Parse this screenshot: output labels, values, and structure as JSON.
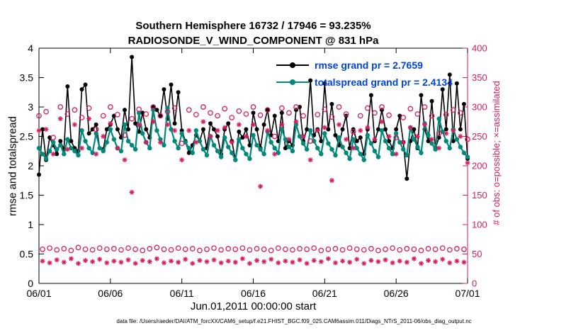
{
  "title": {
    "line1": "Southern Hemisphere 16732 / 17946 = 93.235%",
    "line2": "RADIOSONDE_V_WIND_COMPONENT @ 831 hPa"
  },
  "axes": {
    "xlabel": "Jun.01,2011 00:00:00 start",
    "ylabel_left": "rmse and totalspread",
    "ylabel_right": "# of obs: o=possible; ×=assimilated",
    "x_tick_labels": [
      "06/01",
      "06/06",
      "06/11",
      "06/16",
      "06/21",
      "06/26",
      "07/01"
    ],
    "y_left_tick_labels": [
      "0",
      "0.5",
      "1",
      "1.5",
      "2",
      "2.5",
      "3",
      "3.5",
      "4"
    ],
    "y_right_tick_labels": [
      "0",
      "50",
      "100",
      "150",
      "200",
      "250",
      "300",
      "350",
      "400"
    ]
  },
  "legend": [
    {
      "label": "rmse grand pr = 2.7659",
      "color": "#000000"
    },
    {
      "label": "totalspread grand pr = 2.4134",
      "color": "#00897b"
    }
  ],
  "colors": {
    "rmse": "#000000",
    "totalspread": "#00897b",
    "obs": "#d81b60",
    "legend_text": "#0044dd",
    "axis": "#000000"
  },
  "caption": "data file: /Users/raeder/DAI/ATM_forcXX/CAM6_setup/f.e21.FHIST_BGC.f09_025.CAM6assim.011/Diags_NTrS_2011-06/obs_diag_output.nc",
  "chart_data": {
    "type": "line",
    "x_range_days": [
      0,
      30
    ],
    "sample_interval_days": 0.25,
    "x_tick_days": [
      0,
      5,
      10,
      15,
      20,
      25,
      30
    ],
    "ylim_left": [
      0,
      4
    ],
    "y_left_tick_values": [
      0,
      0.5,
      1,
      1.5,
      2,
      2.5,
      3,
      3.5,
      4
    ],
    "ylim_right": [
      0,
      400
    ],
    "y_right_tick_values": [
      0,
      50,
      100,
      150,
      200,
      250,
      300,
      350,
      400
    ],
    "series": [
      {
        "name": "rmse",
        "grand_mean": 2.7659,
        "values": [
          1.85,
          2.62,
          2.1,
          2.48,
          2.35,
          2.2,
          2.42,
          2.28,
          3.35,
          2.42,
          2.3,
          2.25,
          3.3,
          3.38,
          2.55,
          2.62,
          2.7,
          2.3,
          2.28,
          2.62,
          2.7,
          2.85,
          2.62,
          2.48,
          2.95,
          2.62,
          3.85,
          2.72,
          2.58,
          2.9,
          2.62,
          2.48,
          3.0,
          2.95,
          2.85,
          3.3,
          2.8,
          3.38,
          2.72,
          3.25,
          2.6,
          2.42,
          2.22,
          2.35,
          2.52,
          2.42,
          2.62,
          2.3,
          2.72,
          2.62,
          2.5,
          2.2,
          2.62,
          2.72,
          2.42,
          2.1,
          2.58,
          2.48,
          2.62,
          2.35,
          2.9,
          2.62,
          2.3,
          2.7,
          2.95,
          2.52,
          2.85,
          2.42,
          2.9,
          2.3,
          2.42,
          2.35,
          2.95,
          3.0,
          2.42,
          2.62,
          3.45,
          2.52,
          2.62,
          2.42,
          3.4,
          2.62,
          3.05,
          2.52,
          2.35,
          2.62,
          2.85,
          2.3,
          2.62,
          2.42,
          2.48,
          2.2,
          2.62,
          3.2,
          2.42,
          2.62,
          2.95,
          2.62,
          2.42,
          2.3,
          2.62,
          2.85,
          2.4,
          1.78,
          2.42,
          2.62,
          2.3,
          3.2,
          2.62,
          2.42,
          3.1,
          2.3,
          2.48,
          3.3,
          2.62,
          3.55,
          2.42,
          3.4,
          2.62,
          3.05,
          2.12
        ]
      },
      {
        "name": "totalspread",
        "grand_mean": 2.4134,
        "values": [
          2.3,
          2.2,
          2.12,
          2.25,
          2.4,
          2.28,
          2.35,
          2.2,
          2.45,
          2.3,
          2.25,
          2.18,
          2.6,
          2.42,
          2.3,
          2.22,
          2.55,
          2.3,
          2.25,
          2.4,
          2.62,
          2.45,
          2.3,
          2.25,
          2.7,
          2.42,
          2.35,
          2.28,
          2.9,
          2.55,
          2.4,
          2.3,
          2.95,
          2.6,
          2.45,
          2.35,
          2.98,
          2.62,
          2.42,
          2.3,
          2.55,
          2.4,
          2.3,
          2.22,
          2.6,
          2.42,
          2.28,
          2.18,
          2.5,
          2.35,
          2.25,
          2.15,
          2.48,
          2.32,
          2.22,
          2.1,
          2.45,
          2.3,
          2.2,
          2.12,
          2.52,
          2.35,
          2.28,
          2.2,
          2.58,
          2.4,
          2.3,
          2.22,
          2.62,
          2.45,
          2.32,
          2.25,
          2.7,
          2.5,
          2.38,
          2.28,
          2.6,
          2.42,
          2.3,
          2.2,
          2.55,
          2.38,
          2.28,
          2.18,
          2.48,
          2.32,
          2.22,
          2.12,
          2.45,
          2.3,
          2.2,
          2.1,
          2.52,
          2.38,
          2.25,
          2.15,
          2.6,
          2.42,
          2.3,
          2.2,
          2.55,
          2.4,
          2.28,
          2.18,
          2.65,
          2.45,
          2.32,
          2.22,
          2.72,
          2.52,
          2.38,
          2.28,
          2.8,
          2.58,
          2.42,
          2.3,
          2.62,
          2.45,
          2.32,
          2.22,
          2.15
        ]
      }
    ],
    "obs_counts": {
      "possible": {
        "marker": "o",
        "values": [
          285,
          58,
          292,
          60,
          248,
          57,
          300,
          59,
          288,
          56,
          295,
          61,
          282,
          58,
          298,
          57,
          262,
          60,
          285,
          58,
          300,
          59,
          287,
          57,
          252,
          60,
          280,
          58,
          296,
          56,
          288,
          59,
          300,
          61,
          285,
          58,
          292,
          57,
          298,
          60,
          238,
          58,
          295,
          59,
          287,
          56,
          300,
          58,
          290,
          60,
          285,
          57,
          297,
          59,
          282,
          58,
          293,
          60,
          288,
          57,
          300,
          59,
          286,
          58,
          295,
          56,
          250,
          60,
          298,
          58,
          290,
          57,
          300,
          59,
          285,
          58,
          242,
          60,
          287,
          56,
          296,
          58,
          283,
          59,
          300,
          57,
          288,
          60,
          258,
          58,
          285,
          57,
          298,
          59,
          290,
          56,
          300,
          58,
          286,
          60,
          248,
          57,
          282,
          59,
          297,
          58,
          288,
          56,
          300,
          59,
          285,
          58,
          255,
          60,
          287,
          57,
          295,
          59,
          290,
          58,
          245
        ]
      },
      "assimilated": {
        "marker": "*",
        "values": [
          260,
          38,
          262,
          35,
          220,
          40,
          280,
          36,
          228,
          42,
          270,
          34,
          230,
          39,
          280,
          37,
          220,
          41,
          250,
          35,
          272,
          38,
          230,
          36,
          210,
          40,
          155,
          34,
          270,
          39,
          240,
          37,
          275,
          42,
          240,
          35,
          270,
          38,
          260,
          36,
          210,
          41,
          260,
          34,
          240,
          39,
          275,
          37,
          250,
          40,
          260,
          35,
          265,
          38,
          240,
          36,
          270,
          42,
          250,
          34,
          270,
          39,
          165,
          37,
          260,
          41,
          220,
          35,
          270,
          38,
          245,
          36,
          275,
          40,
          250,
          34,
          210,
          39,
          260,
          37,
          265,
          42,
          175,
          35,
          270,
          38,
          245,
          36,
          230,
          41,
          260,
          34,
          265,
          39,
          245,
          37,
          275,
          40,
          250,
          35,
          220,
          38,
          240,
          36,
          265,
          42,
          250,
          34,
          270,
          39,
          245,
          37,
          230,
          41,
          255,
          35,
          260,
          38,
          250,
          36,
          205
        ]
      }
    }
  }
}
